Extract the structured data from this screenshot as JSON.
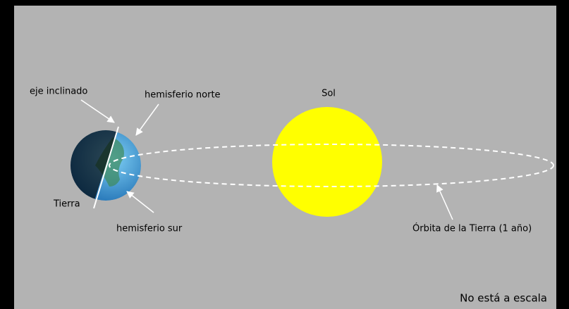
{
  "labels": {
    "axis": "eje inclinado",
    "north": "hemisferio norte",
    "sun": "Sol",
    "earth": "Tierra",
    "south": "hemisferio sur",
    "orbit": "Órbita de la Tierra (1 año)",
    "note": "No está a escala"
  }
}
